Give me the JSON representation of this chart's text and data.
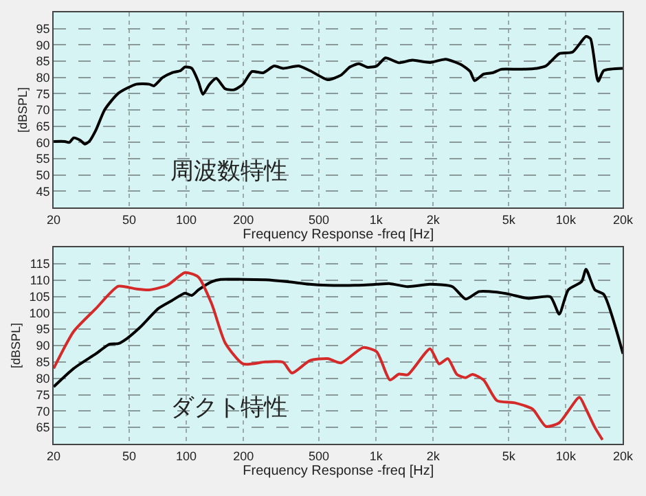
{
  "chart_data": [
    {
      "type": "line",
      "xlabel": "Frequency Response -freq [Hz]",
      "ylabel": "[dBSPL]",
      "annotations": [
        "周波数特性"
      ],
      "log": "x",
      "grid": true,
      "line_style": "solid",
      "xlim": [
        20,
        20000
      ],
      "ylim": [
        40,
        100
      ],
      "xticks": [
        20,
        50,
        100,
        200,
        500,
        {
          "value": 1000,
          "label": "1k"
        },
        {
          "value": 2000,
          "label": "2k"
        },
        {
          "value": 5000,
          "label": "5k"
        },
        {
          "value": 10000,
          "label": "10k"
        },
        {
          "value": 20000,
          "label": "20k"
        }
      ],
      "yticks": [
        45,
        50,
        55,
        60,
        65,
        70,
        75,
        80,
        85,
        90,
        95
      ],
      "series": [
        {
          "color": "#000000",
          "x": [
            20,
            22.9,
            24.2,
            25.5,
            27.7,
            29.2,
            30.8,
            33.4,
            37.2,
            43.8,
            54.4,
            63.9,
            67.5,
            75.2,
            83.8,
            93.4,
            98.5,
            106.8,
            115.9,
            122.3,
            132.6,
            143.9,
            160.3,
            178.6,
            199,
            221.7,
            253.8,
            290.4,
            323.6,
            391,
            447.7,
            555.7,
            653.6,
            728,
            811,
            903.6,
            1007,
            1122,
            1319,
            1551,
            1925,
            2327,
            2812,
            3132,
            3306,
            3684,
            4106,
            4574,
            5677,
            7047,
            7852,
            9228,
            10860,
            12770,
            13490,
            14790,
            15850,
            20000
          ],
          "values": [
            60.3,
            60.3,
            60,
            61.4,
            60.6,
            59.5,
            60.3,
            63.8,
            70.1,
            75.1,
            77.9,
            77.9,
            77.4,
            80,
            81.4,
            82.1,
            83.2,
            82.8,
            78.6,
            74.8,
            77.9,
            79.7,
            76.5,
            76.2,
            77.9,
            81.8,
            81.4,
            83.5,
            82.8,
            83.5,
            82.1,
            79.3,
            80.7,
            83.2,
            84.2,
            83.1,
            83.5,
            86,
            84.5,
            85.3,
            84.6,
            85.6,
            83.9,
            81.8,
            79,
            81,
            81.4,
            82.5,
            82.5,
            82.8,
            83.5,
            87.3,
            87.8,
            92.6,
            91.9,
            78.8,
            82.1,
            82.8
          ]
        }
      ]
    },
    {
      "type": "line",
      "xlabel": "Frequency Response -freq [Hz]",
      "ylabel": "[dBSPL]",
      "annotations": [
        "ダクト特性"
      ],
      "log": "x",
      "grid": true,
      "line_style": "solid",
      "xlim": [
        20,
        20000
      ],
      "ylim": [
        60,
        120
      ],
      "xticks": [
        20,
        50,
        100,
        200,
        500,
        {
          "value": 1000,
          "label": "1k"
        },
        {
          "value": 2000,
          "label": "2k"
        },
        {
          "value": 5000,
          "label": "5k"
        },
        {
          "value": 10000,
          "label": "10k"
        },
        {
          "value": 20000,
          "label": "20k"
        }
      ],
      "yticks": [
        65,
        70,
        75,
        80,
        85,
        90,
        95,
        100,
        105,
        110,
        115
      ],
      "series": [
        {
          "color": "#000000",
          "x": [
            20,
            25.5,
            33.4,
            39.3,
            43.8,
            48.8,
            57.4,
            71.2,
            83.8,
            98.5,
            106.8,
            115.9,
            136.2,
            151.8,
            199,
            260.7,
            341.5,
            447.7,
            555.7,
            768.4,
            1007,
            1184,
            1470,
            1925,
            2524,
            2967,
            3490,
            4333,
            5094,
            6325,
            8288,
            9228,
            10290,
            12100,
            12770,
            14220,
            15850,
            20000
          ],
          "values": [
            77.4,
            83,
            87.5,
            90.4,
            90.6,
            92.2,
            95.7,
            101.3,
            103.7,
            106,
            105.3,
            107,
            109.5,
            110.2,
            110.2,
            110.1,
            109.5,
            108.7,
            108.4,
            108.4,
            108.7,
            108.9,
            108,
            108.7,
            108,
            104.2,
            106.5,
            106.3,
            105.6,
            104.4,
            104.9,
            99.6,
            107,
            109.5,
            113.3,
            107,
            105.6,
            87.5
          ]
        },
        {
          "color": "#d42a2a",
          "x": [
            20,
            25.5,
            33.4,
            43.8,
            54.4,
            63.9,
            79.4,
            98.5,
            115.9,
            136.2,
            160.3,
            199,
            260.7,
            323.6,
            360.6,
            447.7,
            555.7,
            653.6,
            856.2,
            1007,
            1184,
            1319,
            1470,
            1925,
            2147,
            2391,
            2664,
            2967,
            3219,
            3684,
            4333,
            5378,
            6676,
            7851,
            9228,
            11780,
            12770,
            14220,
            15600
          ],
          "values": [
            83,
            94.3,
            101.3,
            108.1,
            107.3,
            107,
            108.4,
            112.3,
            110.9,
            102.7,
            90.8,
            84.4,
            85,
            84.9,
            81.6,
            85.4,
            86,
            84.7,
            89.4,
            88.1,
            79.5,
            81.3,
            81.1,
            89,
            84.4,
            86,
            81.2,
            80.2,
            81.2,
            79.5,
            73.2,
            72.5,
            70.6,
            65.3,
            66.4,
            74.2,
            70.6,
            65,
            61.2
          ]
        }
      ]
    }
  ]
}
